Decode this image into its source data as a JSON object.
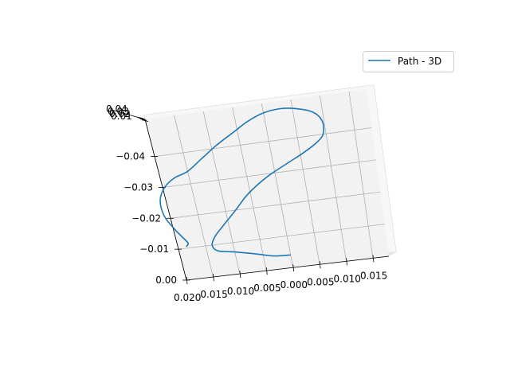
{
  "chart_data": {
    "type": "line",
    "projection": "3d",
    "title": "",
    "series": [
      {
        "name": "Path - 3D",
        "color": "#1f77b4",
        "points": [
          [
            0.0185,
            -0.0105
          ],
          [
            0.018,
            -0.0115
          ],
          [
            0.0187,
            -0.0135
          ],
          [
            0.0198,
            -0.0165
          ],
          [
            0.021,
            -0.021
          ],
          [
            0.021,
            -0.026
          ],
          [
            0.0196,
            -0.03
          ],
          [
            0.0175,
            -0.0325
          ],
          [
            0.015,
            -0.034
          ],
          [
            0.012,
            -0.0375
          ],
          [
            0.009,
            -0.041
          ],
          [
            0.0055,
            -0.0445
          ],
          [
            0.003,
            -0.047
          ],
          [
            0.0,
            -0.049
          ],
          [
            -0.003,
            -0.0496
          ],
          [
            -0.006,
            -0.0488
          ],
          [
            -0.0085,
            -0.047
          ],
          [
            -0.0097,
            -0.044
          ],
          [
            -0.0095,
            -0.04
          ],
          [
            -0.008,
            -0.0375
          ],
          [
            -0.0055,
            -0.035
          ],
          [
            -0.0025,
            -0.0325
          ],
          [
            0.0005,
            -0.03
          ],
          [
            0.003,
            -0.0275
          ],
          [
            0.0058,
            -0.024
          ],
          [
            0.0082,
            -0.02
          ],
          [
            0.0108,
            -0.016
          ],
          [
            0.0128,
            -0.0128
          ],
          [
            0.0138,
            -0.01
          ],
          [
            0.013,
            -0.008
          ],
          [
            0.01,
            -0.007
          ],
          [
            0.006,
            -0.0055
          ],
          [
            0.003,
            -0.0043
          ],
          [
            0.0,
            -0.004
          ]
        ]
      }
    ],
    "x_ticks": [
      "0.020",
      "0.015",
      "0.010",
      "0.005",
      "0.000",
      "0.005",
      "0.010",
      "0.015"
    ],
    "y_ticks": [
      "0.00",
      "−0.01",
      "−0.02",
      "−0.03",
      "−0.04"
    ],
    "z_ticks": [
      "0.04",
      "0.03",
      "0.02",
      "0.01"
    ],
    "xlim": [
      0.02,
      -0.018
    ],
    "ylim": [
      0.0,
      -0.052
    ],
    "grid": true,
    "legend": {
      "position": "top-right",
      "entries": [
        "Path - 3D"
      ]
    }
  }
}
